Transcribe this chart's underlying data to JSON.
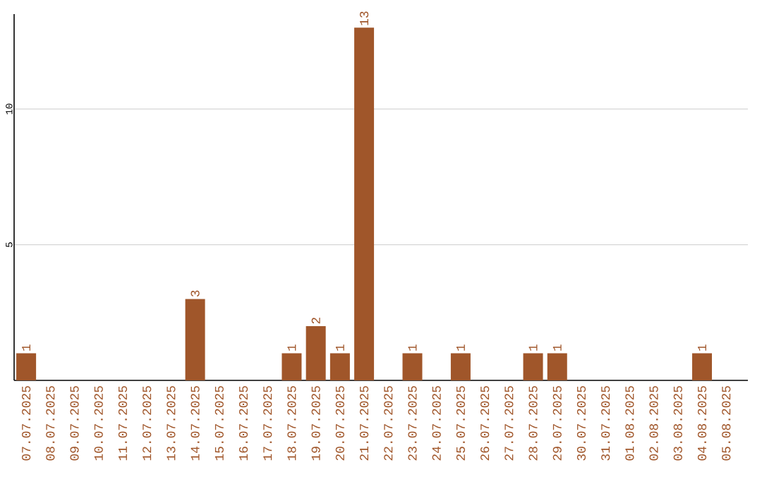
{
  "chart_data": {
    "type": "bar",
    "categories": [
      "07.07.2025",
      "08.07.2025",
      "09.07.2025",
      "10.07.2025",
      "11.07.2025",
      "12.07.2025",
      "13.07.2025",
      "14.07.2025",
      "15.07.2025",
      "16.07.2025",
      "17.07.2025",
      "18.07.2025",
      "19.07.2025",
      "20.07.2025",
      "21.07.2025",
      "22.07.2025",
      "23.07.2025",
      "24.07.2025",
      "25.07.2025",
      "26.07.2025",
      "27.07.2025",
      "28.07.2025",
      "29.07.2025",
      "30.07.2025",
      "31.07.2025",
      "01.08.2025",
      "02.08.2025",
      "03.08.2025",
      "04.08.2025",
      "05.08.2025"
    ],
    "values": [
      1,
      0,
      0,
      0,
      0,
      0,
      0,
      3,
      0,
      0,
      0,
      1,
      2,
      1,
      13,
      0,
      1,
      0,
      1,
      0,
      0,
      1,
      1,
      0,
      0,
      0,
      0,
      0,
      1,
      0
    ],
    "value_labels": [
      "1",
      null,
      null,
      null,
      null,
      null,
      null,
      "3",
      null,
      null,
      null,
      "1",
      "2",
      "1",
      "13",
      null,
      "1",
      null,
      "1",
      null,
      null,
      "1",
      "1",
      null,
      null,
      null,
      null,
      null,
      "1",
      null
    ],
    "color": "#a0562a",
    "ylim": [
      0,
      13.5
    ],
    "yticks": [
      5,
      10
    ],
    "grid": "y"
  }
}
